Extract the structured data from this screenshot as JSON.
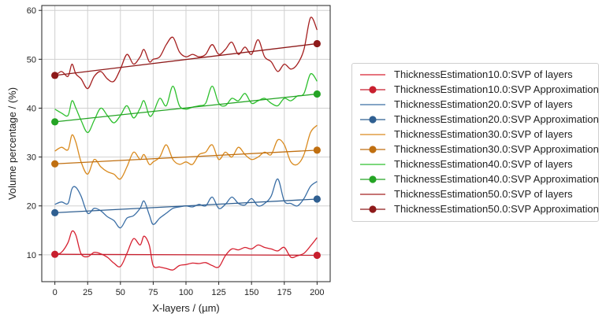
{
  "chart_data": {
    "type": "line",
    "title": "",
    "xlabel": "X-layers / (µm)",
    "ylabel": "Volume percentage / (%)",
    "xlim": [
      -10,
      210
    ],
    "ylim": [
      4.5,
      61
    ],
    "xticks": [
      0,
      25,
      50,
      75,
      100,
      125,
      150,
      175,
      200
    ],
    "yticks": [
      10,
      20,
      30,
      40,
      50,
      60
    ],
    "grid": true,
    "legend_position": "right",
    "series": [
      {
        "name": "ThicknessEstimation10.0:SVP of layers",
        "color": "#d62030",
        "marker": false,
        "x": [
          0,
          5,
          10,
          13,
          16,
          20,
          25,
          30,
          35,
          40,
          45,
          50,
          55,
          60,
          65,
          68,
          72,
          75,
          80,
          85,
          90,
          95,
          100,
          105,
          110,
          115,
          120,
          125,
          130,
          135,
          140,
          145,
          150,
          155,
          160,
          165,
          170,
          175,
          180,
          185,
          190,
          195,
          200
        ],
        "values": [
          10.0,
          10.5,
          12.5,
          14.8,
          14.0,
          10.2,
          9.6,
          10.5,
          10.2,
          9.5,
          8.3,
          7.6,
          10.3,
          13.3,
          12.0,
          13.8,
          12.0,
          7.8,
          7.5,
          7.2,
          6.9,
          7.8,
          8.0,
          8.3,
          8.2,
          8.4,
          7.8,
          7.5,
          9.8,
          11.2,
          11.0,
          11.5,
          11.2,
          12.0,
          11.5,
          11.2,
          10.8,
          11.5,
          9.5,
          9.8,
          10.3,
          11.8,
          13.5
        ]
      },
      {
        "name": "ThicknessEstimation10.0:SVP Approximation",
        "color": "#c81f2e",
        "marker": true,
        "x": [
          0,
          200
        ],
        "values": [
          10.1,
          9.9
        ]
      },
      {
        "name": "ThicknessEstimation20.0:SVP of layers",
        "color": "#3a6ea5",
        "marker": false,
        "x": [
          0,
          5,
          10,
          13,
          16,
          20,
          25,
          30,
          35,
          40,
          45,
          50,
          55,
          60,
          65,
          68,
          72,
          75,
          80,
          85,
          90,
          95,
          100,
          105,
          110,
          115,
          120,
          125,
          130,
          135,
          140,
          145,
          150,
          155,
          160,
          165,
          170,
          175,
          180,
          185,
          190,
          195,
          200
        ],
        "values": [
          20.3,
          20.8,
          20.5,
          23.5,
          23.8,
          22.0,
          18.5,
          19.5,
          19.0,
          17.8,
          17.0,
          15.5,
          17.5,
          18.0,
          19.5,
          21.0,
          18.2,
          16.2,
          17.5,
          18.5,
          19.5,
          19.8,
          20.0,
          19.8,
          20.3,
          20.0,
          21.8,
          19.5,
          20.3,
          21.8,
          20.5,
          20.2,
          21.5,
          20.0,
          20.5,
          22.0,
          25.5,
          21.0,
          20.5,
          20.0,
          21.5,
          24.0,
          25.0
        ]
      },
      {
        "name": "ThicknessEstimation20.0:SVP Approximation",
        "color": "#2f5f91",
        "marker": true,
        "x": [
          0,
          200
        ],
        "values": [
          18.6,
          21.4
        ]
      },
      {
        "name": "ThicknessEstimation30.0:SVP of layers",
        "color": "#d98a1e",
        "marker": false,
        "x": [
          0,
          5,
          10,
          13,
          16,
          20,
          25,
          30,
          35,
          40,
          45,
          50,
          55,
          60,
          65,
          68,
          72,
          75,
          80,
          85,
          90,
          95,
          100,
          105,
          110,
          115,
          120,
          125,
          130,
          135,
          140,
          145,
          150,
          155,
          160,
          165,
          170,
          175,
          180,
          185,
          190,
          195,
          200
        ],
        "values": [
          31.2,
          32.0,
          31.5,
          34.5,
          33.0,
          29.0,
          26.5,
          29.5,
          28.0,
          27.0,
          26.5,
          25.5,
          28.0,
          31.0,
          29.5,
          30.5,
          28.5,
          29.0,
          30.0,
          32.5,
          29.5,
          28.5,
          29.0,
          28.5,
          30.5,
          31.0,
          32.5,
          29.5,
          31.0,
          30.0,
          32.0,
          30.5,
          29.5,
          30.0,
          31.0,
          30.5,
          33.5,
          32.5,
          29.0,
          28.5,
          30.5,
          35.0,
          36.5
        ]
      },
      {
        "name": "ThicknessEstimation30.0:SVP Approximation",
        "color": "#c06f10",
        "marker": true,
        "x": [
          0,
          200
        ],
        "values": [
          28.6,
          31.4
        ]
      },
      {
        "name": "ThicknessEstimation40.0:SVP of layers",
        "color": "#2ec02e",
        "marker": false,
        "x": [
          0,
          5,
          10,
          13,
          16,
          20,
          25,
          30,
          35,
          40,
          45,
          50,
          55,
          60,
          65,
          68,
          72,
          75,
          80,
          85,
          90,
          95,
          100,
          105,
          110,
          115,
          120,
          125,
          130,
          135,
          140,
          145,
          150,
          155,
          160,
          165,
          170,
          175,
          180,
          185,
          190,
          195,
          200
        ],
        "values": [
          39.8,
          39.0,
          38.5,
          41.5,
          40.0,
          37.5,
          35.0,
          37.5,
          40.0,
          38.5,
          37.0,
          38.5,
          40.5,
          38.0,
          40.0,
          41.5,
          38.5,
          39.0,
          42.0,
          40.5,
          44.5,
          40.5,
          39.8,
          40.2,
          40.5,
          41.0,
          44.5,
          41.0,
          40.5,
          42.0,
          41.5,
          43.0,
          41.0,
          41.5,
          42.0,
          41.0,
          40.5,
          42.0,
          41.5,
          42.5,
          43.0,
          47.0,
          45.5
        ]
      },
      {
        "name": "ThicknessEstimation40.0:SVP Approximation",
        "color": "#24a424",
        "marker": true,
        "x": [
          0,
          200
        ],
        "values": [
          37.2,
          42.9
        ]
      },
      {
        "name": "ThicknessEstimation50.0:SVP of layers",
        "color": "#a52020",
        "marker": false,
        "x": [
          0,
          5,
          10,
          13,
          16,
          20,
          25,
          30,
          35,
          40,
          45,
          50,
          55,
          60,
          65,
          68,
          72,
          75,
          80,
          85,
          90,
          95,
          100,
          105,
          110,
          115,
          120,
          125,
          130,
          135,
          140,
          145,
          150,
          155,
          160,
          165,
          170,
          175,
          180,
          185,
          190,
          195,
          200
        ],
        "values": [
          46.5,
          47.5,
          46.5,
          49.0,
          47.0,
          46.0,
          44.0,
          46.5,
          47.5,
          46.0,
          45.5,
          48.0,
          51.0,
          49.0,
          50.5,
          52.0,
          49.5,
          50.0,
          50.5,
          53.0,
          54.5,
          51.5,
          50.5,
          51.0,
          50.5,
          51.0,
          53.0,
          51.0,
          52.0,
          53.5,
          51.0,
          52.5,
          51.0,
          54.0,
          50.5,
          49.5,
          47.5,
          49.0,
          48.0,
          49.0,
          52.0,
          58.5,
          56.0
        ]
      },
      {
        "name": "ThicknessEstimation50.0:SVP Approximation",
        "color": "#8e1a1a",
        "marker": true,
        "x": [
          0,
          200
        ],
        "values": [
          46.7,
          53.2
        ]
      }
    ]
  }
}
